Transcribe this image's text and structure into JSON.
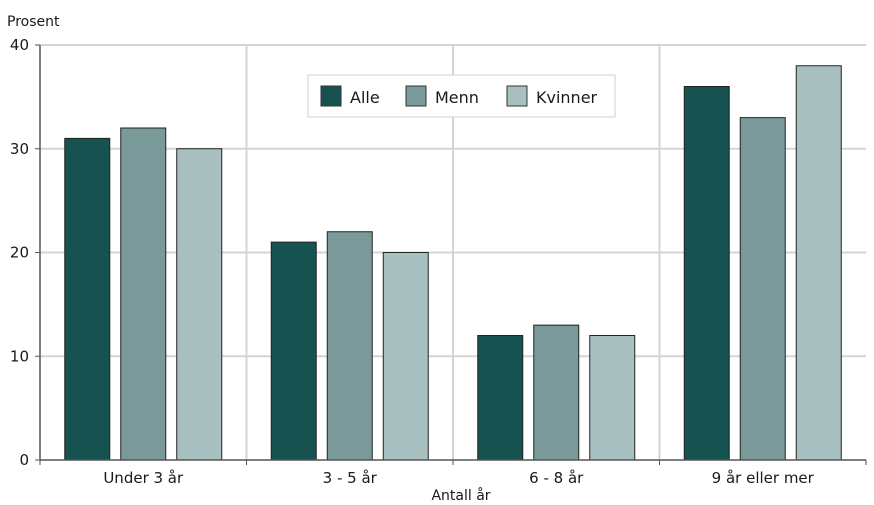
{
  "chart_data": {
    "type": "bar",
    "title": "",
    "ylabel": "Prosent",
    "xlabel": "Antall år",
    "ylim": [
      0,
      40
    ],
    "yticks": [
      0,
      10,
      20,
      30,
      40
    ],
    "grid": true,
    "legend_position": "top-center",
    "categories": [
      "Under 3 år",
      "3 - 5 år",
      "6 - 8 år",
      "9 år eller mer"
    ],
    "series": [
      {
        "name": "Alle",
        "values": [
          31,
          21,
          12,
          36
        ],
        "color": "#155250"
      },
      {
        "name": "Menn",
        "values": [
          32,
          22,
          13,
          33
        ],
        "color": "#7a9a99"
      },
      {
        "name": "Kvinner",
        "values": [
          30,
          20,
          12,
          38
        ],
        "color": "#a9c0c0"
      }
    ]
  }
}
